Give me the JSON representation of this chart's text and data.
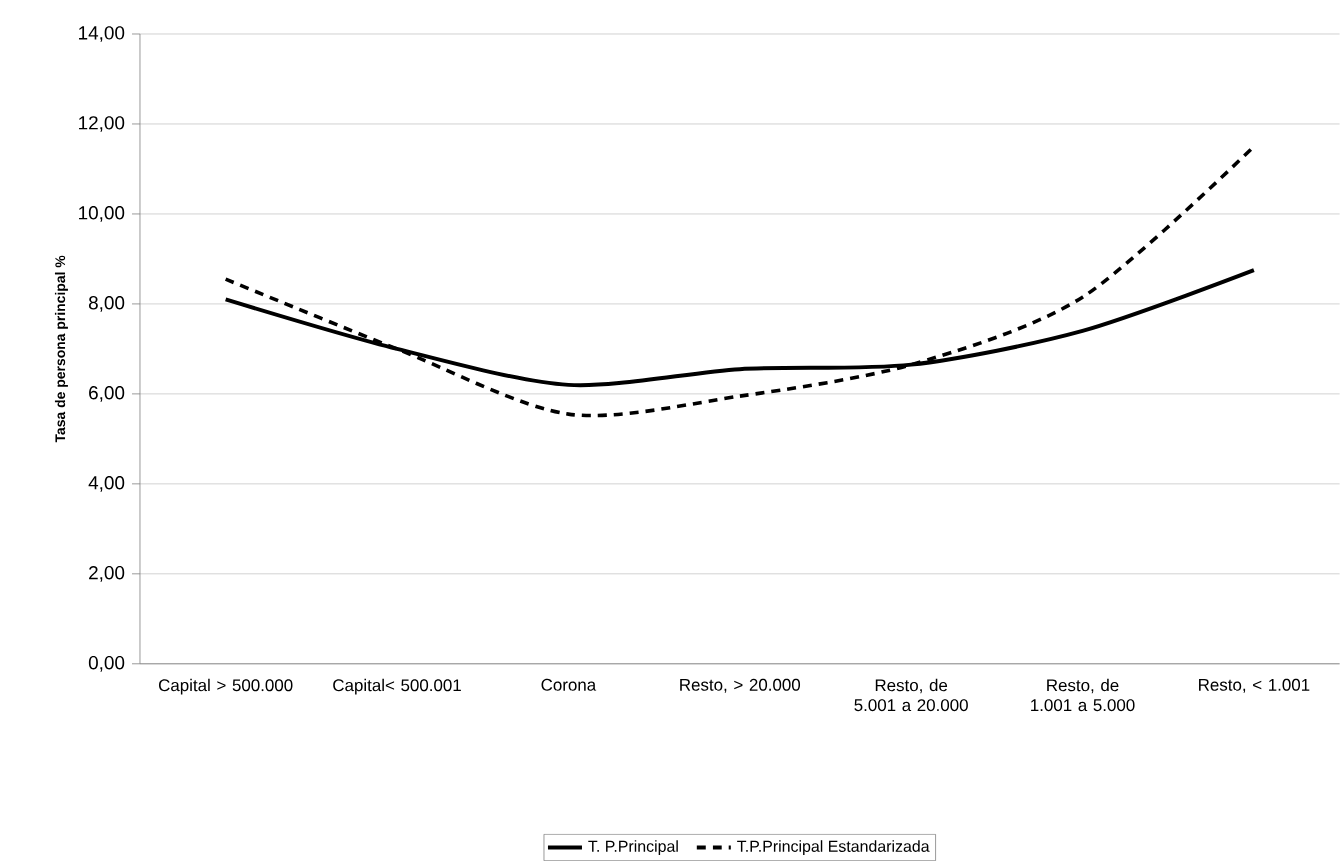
{
  "chart_data": {
    "type": "line",
    "ylabel": "Tasa de persona principal %",
    "categories": [
      "Capital > 500.000",
      "Capital< 500.001",
      "Corona",
      "Resto, > 20.000",
      "Resto, de 5.001 a 20.000",
      "Resto, de 1.001 a 5.000",
      "Resto, < 1.001"
    ],
    "series": [
      {
        "name": "T. P.Principal",
        "color": "#000000",
        "line_style": "solid",
        "values": [
          8.1,
          7.0,
          6.2,
          6.55,
          6.65,
          7.4,
          8.75
        ]
      },
      {
        "name": "T.P.Principal Estandarizada",
        "color": "#000000",
        "line_style": "dashed",
        "values": [
          8.55,
          7.0,
          5.55,
          5.95,
          6.65,
          8.15,
          11.5
        ]
      }
    ],
    "ylim": [
      0,
      14
    ],
    "yticks": [
      {
        "value": 0,
        "label": "0,00"
      },
      {
        "value": 2,
        "label": "2,00"
      },
      {
        "value": 4,
        "label": "4,00"
      },
      {
        "value": 6,
        "label": "6,00"
      },
      {
        "value": 8,
        "label": "8,00"
      },
      {
        "value": 10,
        "label": "10,00"
      },
      {
        "value": 12,
        "label": "12,00"
      },
      {
        "value": 14,
        "label": "14,00"
      }
    ],
    "grid": "y",
    "legend": "bottom",
    "marker": "none"
  }
}
